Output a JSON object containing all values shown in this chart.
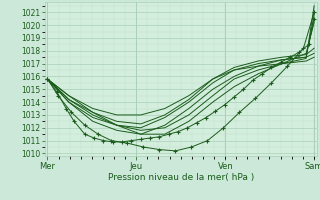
{
  "xlabel": "Pression niveau de la mer( hPa )",
  "ylim": [
    1009.8,
    1021.8
  ],
  "yticks": [
    1010,
    1011,
    1012,
    1013,
    1014,
    1015,
    1016,
    1017,
    1018,
    1019,
    1020,
    1021
  ],
  "bg_color": "#cce8d8",
  "plot_bg_color": "#d4eede",
  "grid_major_color": "#aacfba",
  "grid_minor_color": "#c0dfc8",
  "line_color": "#1a5c1a",
  "day_labels": [
    "Mer",
    "Jeu",
    "Ven",
    "Sam"
  ],
  "day_positions": [
    0.0,
    0.333,
    0.667,
    1.0
  ],
  "lines": [
    {
      "x": [
        0.0,
        0.035,
        0.07,
        0.1,
        0.14,
        0.175,
        0.21,
        0.245,
        0.28,
        0.315,
        0.35,
        0.385,
        0.42,
        0.455,
        0.49,
        0.525,
        0.56,
        0.595,
        0.63,
        0.665,
        0.7,
        0.735,
        0.77,
        0.805,
        0.84,
        0.875,
        0.91,
        0.945,
        0.98,
        1.0
      ],
      "y": [
        1015.8,
        1014.8,
        1013.5,
        1012.5,
        1011.5,
        1011.2,
        1011.0,
        1010.9,
        1010.9,
        1011.0,
        1011.1,
        1011.2,
        1011.3,
        1011.5,
        1011.7,
        1012.0,
        1012.4,
        1012.8,
        1013.3,
        1013.8,
        1014.4,
        1015.0,
        1015.7,
        1016.2,
        1016.7,
        1017.1,
        1017.5,
        1017.9,
        1018.5,
        1020.5
      ],
      "marker": true
    },
    {
      "x": [
        0.0,
        0.04,
        0.09,
        0.14,
        0.19,
        0.24,
        0.3,
        0.36,
        0.42,
        0.48,
        0.54,
        0.6,
        0.66,
        0.72,
        0.78,
        0.84,
        0.9,
        0.96,
        1.0
      ],
      "y": [
        1015.8,
        1014.5,
        1013.2,
        1012.2,
        1011.5,
        1011.0,
        1010.8,
        1010.5,
        1010.3,
        1010.2,
        1010.5,
        1011.0,
        1012.0,
        1013.2,
        1014.3,
        1015.5,
        1016.8,
        1018.2,
        1021.0
      ],
      "marker": true
    },
    {
      "x": [
        0.0,
        0.08,
        0.17,
        0.26,
        0.35,
        0.44,
        0.53,
        0.62,
        0.7,
        0.79,
        0.88,
        0.97,
        1.0
      ],
      "y": [
        1015.8,
        1014.5,
        1013.2,
        1012.2,
        1011.5,
        1011.5,
        1012.5,
        1014.0,
        1015.2,
        1016.2,
        1017.0,
        1017.8,
        1020.2
      ],
      "marker": false
    },
    {
      "x": [
        0.0,
        0.08,
        0.17,
        0.26,
        0.35,
        0.44,
        0.53,
        0.62,
        0.7,
        0.79,
        0.88,
        0.97,
        1.0
      ],
      "y": [
        1015.8,
        1014.2,
        1013.0,
        1012.2,
        1011.8,
        1012.0,
        1013.0,
        1014.5,
        1015.8,
        1016.5,
        1017.0,
        1017.4,
        1021.5
      ],
      "marker": false
    },
    {
      "x": [
        0.0,
        0.08,
        0.17,
        0.26,
        0.35,
        0.44,
        0.53,
        0.62,
        0.7,
        0.79,
        0.88,
        0.97,
        1.0
      ],
      "y": [
        1015.8,
        1014.0,
        1012.5,
        1011.8,
        1011.5,
        1012.2,
        1013.5,
        1015.0,
        1016.0,
        1016.8,
        1017.3,
        1017.5,
        1020.8
      ],
      "marker": false
    },
    {
      "x": [
        0.0,
        0.08,
        0.17,
        0.26,
        0.35,
        0.44,
        0.53,
        0.62,
        0.7,
        0.79,
        0.88,
        0.97,
        1.0
      ],
      "y": [
        1015.8,
        1014.0,
        1012.8,
        1012.2,
        1012.0,
        1012.8,
        1014.0,
        1015.5,
        1016.5,
        1017.0,
        1017.3,
        1017.5,
        1017.8
      ],
      "marker": false
    },
    {
      "x": [
        0.0,
        0.08,
        0.17,
        0.26,
        0.35,
        0.44,
        0.53,
        0.62,
        0.7,
        0.79,
        0.88,
        0.97,
        1.0
      ],
      "y": [
        1015.8,
        1014.2,
        1013.2,
        1012.5,
        1012.3,
        1013.0,
        1014.2,
        1015.8,
        1016.7,
        1017.2,
        1017.5,
        1017.7,
        1018.2
      ],
      "marker": false
    },
    {
      "x": [
        0.0,
        0.08,
        0.17,
        0.26,
        0.35,
        0.44,
        0.53,
        0.62,
        0.7,
        0.79,
        0.88,
        0.97,
        1.0
      ],
      "y": [
        1015.8,
        1014.5,
        1013.5,
        1013.0,
        1013.0,
        1013.5,
        1014.5,
        1015.8,
        1016.5,
        1016.8,
        1017.0,
        1017.2,
        1017.5
      ],
      "marker": false
    }
  ]
}
